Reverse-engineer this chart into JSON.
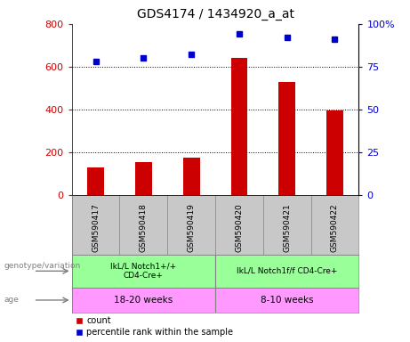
{
  "title": "GDS4174 / 1434920_a_at",
  "samples": [
    "GSM590417",
    "GSM590418",
    "GSM590419",
    "GSM590420",
    "GSM590421",
    "GSM590422"
  ],
  "counts": [
    130,
    155,
    175,
    640,
    530,
    395
  ],
  "percentile_ranks": [
    78,
    80,
    82,
    94,
    92,
    91
  ],
  "ylim_left": [
    0,
    800
  ],
  "ylim_right": [
    0,
    100
  ],
  "yticks_left": [
    0,
    200,
    400,
    600,
    800
  ],
  "yticks_right": [
    0,
    25,
    50,
    75,
    100
  ],
  "bar_color": "#cc0000",
  "dot_color": "#0000cc",
  "genotype_labels": [
    "IkL/L Notch1+/+\nCD4-Cre+",
    "IkL/L Notch1f/f CD4-Cre+"
  ],
  "genotype_color": "#99ff99",
  "age_labels": [
    "18-20 weeks",
    "8-10 weeks"
  ],
  "age_color": "#ff99ff",
  "tick_label_color_left": "#cc0000",
  "tick_label_color_right": "#0000cc",
  "background_label_row": "#c8c8c8",
  "bar_width": 0.35,
  "gridline_dotvalues": [
    200,
    400,
    600
  ]
}
